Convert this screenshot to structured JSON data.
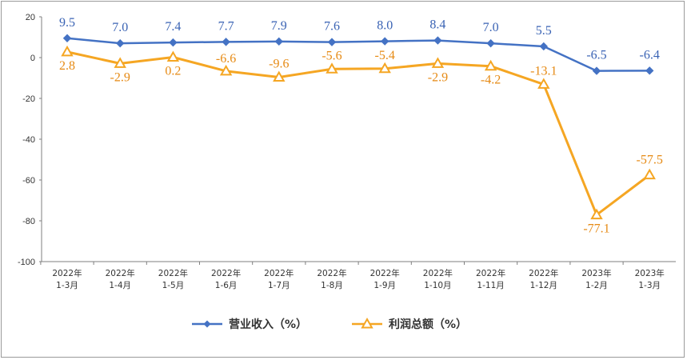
{
  "chart_data": {
    "type": "line",
    "categories": [
      [
        "2022年",
        "1-3月"
      ],
      [
        "2022年",
        "1-4月"
      ],
      [
        "2022年",
        "1-5月"
      ],
      [
        "2022年",
        "1-6月"
      ],
      [
        "2022年",
        "1-7月"
      ],
      [
        "2022年",
        "1-8月"
      ],
      [
        "2022年",
        "1-9月"
      ],
      [
        "2022年",
        "1-10月"
      ],
      [
        "2022年",
        "1-11月"
      ],
      [
        "2022年",
        "1-12月"
      ],
      [
        "2023年",
        "1-2月"
      ],
      [
        "2023年",
        "1-3月"
      ]
    ],
    "series": [
      {
        "name": "营业收入（%）",
        "color": "#4472c4",
        "label_color": "#3a63b4",
        "marker": "diamond",
        "values": [
          9.5,
          7.0,
          7.4,
          7.7,
          7.9,
          7.6,
          8.0,
          8.4,
          7.0,
          5.5,
          -6.5,
          -6.4
        ],
        "labels": [
          "9.5",
          "7.0",
          "7.4",
          "7.7",
          "7.9",
          "7.6",
          "8.0",
          "8.4",
          "7.0",
          "5.5",
          "-6.5",
          "-6.4"
        ]
      },
      {
        "name": "利润总额（%）",
        "color": "#f5a623",
        "label_color": "#e68a14",
        "marker": "triangle",
        "values": [
          2.8,
          -2.9,
          0.2,
          -6.6,
          -9.6,
          -5.6,
          -5.4,
          -2.9,
          -4.2,
          -13.1,
          -77.1,
          -57.5
        ],
        "labels": [
          "2.8",
          "-2.9",
          "0.2",
          "-6.6",
          "-9.6",
          "-5.6",
          "-5.4",
          "-2.9",
          "-4.2",
          "-13.1",
          "-77.1",
          "-57.5"
        ]
      }
    ],
    "yticks": [
      "20",
      "0",
      "-20",
      "-40",
      "-60",
      "-80",
      "-100"
    ],
    "ylim": [
      -100,
      20
    ],
    "grid": false,
    "legend_position": "bottom"
  }
}
